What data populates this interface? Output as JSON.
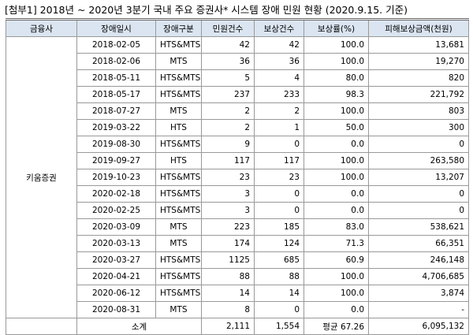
{
  "title": "[첨부1] 2018년 ~ 2020년 3분기 국내 주요 증권사* 시스템 장애 민원 현황 (2020.9.15. 기준)",
  "table": {
    "headers": [
      "금융사",
      "장애일시",
      "장애구분",
      "민원건수",
      "보상건수",
      "보상률(%)",
      "피해보상금액(천원)"
    ],
    "company": "키움증권",
    "rows": [
      [
        "2018-02-05",
        "HTS&MTS",
        "42",
        "42",
        "100.0",
        "13,681"
      ],
      [
        "2018-02-06",
        "MTS",
        "36",
        "36",
        "100.0",
        "19,270"
      ],
      [
        "2018-05-11",
        "HTS&MTS",
        "5",
        "4",
        "80.0",
        "820"
      ],
      [
        "2018-05-17",
        "HTS&MTS",
        "237",
        "233",
        "98.3",
        "221,792"
      ],
      [
        "2018-07-27",
        "MTS",
        "2",
        "2",
        "100.0",
        "803"
      ],
      [
        "2019-03-22",
        "HTS",
        "2",
        "1",
        "50.0",
        "300"
      ],
      [
        "2019-08-30",
        "HTS&MTS",
        "9",
        "0",
        "0.0",
        "0"
      ],
      [
        "2019-09-27",
        "HTS",
        "117",
        "117",
        "100.0",
        "263,580"
      ],
      [
        "2019-10-23",
        "HTS&MTS",
        "23",
        "23",
        "100.0",
        "13,207"
      ],
      [
        "2020-02-18",
        "HTS&MTS",
        "3",
        "0",
        "0.0",
        "0"
      ],
      [
        "2020-02-25",
        "HTS&MTS",
        "3",
        "0",
        "0.0",
        "0"
      ],
      [
        "2020-03-09",
        "MTS",
        "223",
        "185",
        "83.0",
        "538,621"
      ],
      [
        "2020-03-13",
        "MTS",
        "174",
        "124",
        "71.3",
        "66,351"
      ],
      [
        "2020-03-27",
        "HTS&MTS",
        "1125",
        "685",
        "60.9",
        "246,148"
      ],
      [
        "2020-04-21",
        "HTS&MTS",
        "88",
        "88",
        "100.0",
        "4,706,685"
      ],
      [
        "2020-06-12",
        "HTS&MTS",
        "14",
        "14",
        "100.0",
        "3,874"
      ],
      [
        "2020-08-31",
        "MTS",
        "8",
        "0",
        "0.0",
        "-"
      ]
    ],
    "total": [
      "소계",
      "2,111",
      "1,554",
      "평균 67.26",
      "6,095,132"
    ]
  }
}
